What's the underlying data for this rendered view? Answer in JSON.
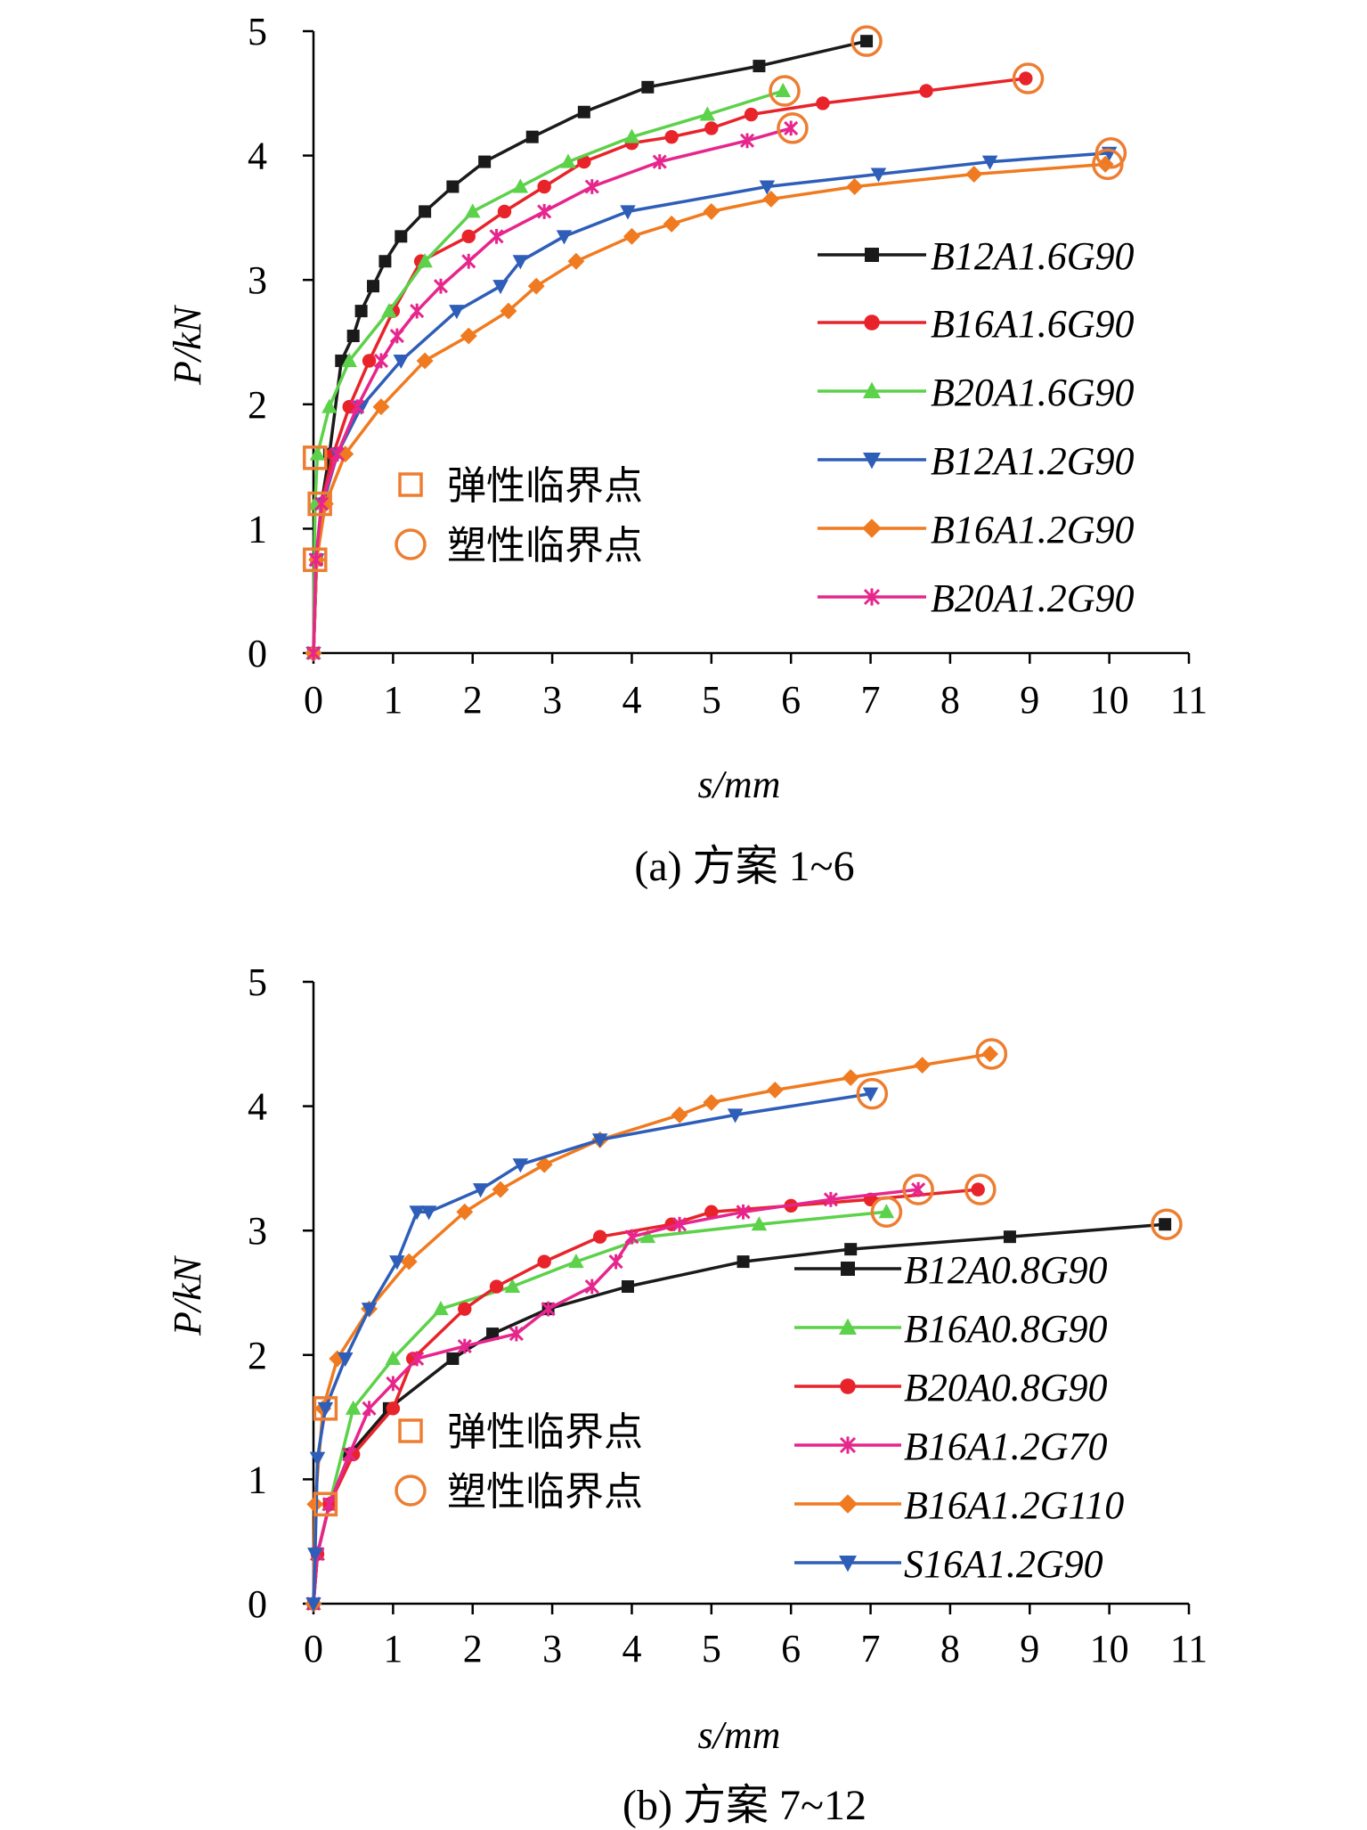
{
  "chart_data": [
    {
      "type": "line",
      "caption": "(a) 方案 1~6",
      "xlabel": "s/mm",
      "ylabel": "P/kN",
      "xlim": [
        0,
        11
      ],
      "ylim": [
        0,
        5
      ],
      "xticks": [
        "0",
        "1",
        "2",
        "3",
        "4",
        "5",
        "6",
        "7",
        "8",
        "9",
        "10",
        "11"
      ],
      "yticks": [
        "0",
        "1",
        "2",
        "3",
        "4",
        "5"
      ],
      "grid": false,
      "legend_position": "right",
      "markers_legend": [
        {
          "symbol": "square",
          "label": "弹性临界点",
          "color": "#ED7D31"
        },
        {
          "symbol": "circle",
          "label": "塑性临界点",
          "color": "#ED7D31"
        }
      ],
      "series": [
        {
          "name": "B12A1.6G90",
          "color": "#1a1a1a",
          "marker": "square",
          "x": [
            0,
            0.04,
            0.1,
            0.2,
            0.35,
            0.5,
            0.6,
            0.75,
            0.9,
            1.1,
            1.4,
            1.75,
            2.15,
            2.75,
            3.4,
            4.2,
            5.6,
            6.95
          ],
          "y": [
            0,
            0.75,
            1.2,
            1.6,
            2.35,
            2.55,
            2.75,
            2.95,
            3.15,
            3.35,
            3.55,
            3.75,
            3.95,
            4.15,
            4.35,
            4.55,
            4.72,
            4.92
          ]
        },
        {
          "name": "B16A1.6G90",
          "color": "#E8232A",
          "marker": "circle",
          "x": [
            0,
            0.04,
            0.1,
            0.25,
            0.45,
            0.7,
            1.0,
            1.35,
            1.95,
            2.4,
            2.9,
            3.4,
            4.0,
            4.5,
            5.0,
            5.5,
            6.4,
            7.7,
            8.95
          ],
          "y": [
            0,
            0.75,
            1.2,
            1.6,
            1.98,
            2.35,
            2.75,
            3.15,
            3.35,
            3.55,
            3.75,
            3.95,
            4.1,
            4.15,
            4.22,
            4.33,
            4.42,
            4.52,
            4.62
          ]
        },
        {
          "name": "B20A1.6G90",
          "color": "#5CD14A",
          "marker": "triangle-up",
          "x": [
            0,
            0.02,
            0.05,
            0.2,
            0.45,
            0.95,
            1.4,
            2.0,
            2.6,
            3.2,
            4.0,
            4.95,
            5.9
          ],
          "y": [
            0,
            1.2,
            1.6,
            1.98,
            2.35,
            2.75,
            3.15,
            3.55,
            3.75,
            3.95,
            4.15,
            4.33,
            4.52
          ]
        },
        {
          "name": "B12A1.2G90",
          "color": "#2E5EB8",
          "marker": "triangle-down",
          "x": [
            0,
            0.04,
            0.12,
            0.3,
            0.6,
            1.1,
            1.8,
            2.35,
            2.6,
            3.15,
            3.95,
            5.7,
            7.1,
            8.5,
            10.0
          ],
          "y": [
            0,
            0.75,
            1.2,
            1.6,
            1.98,
            2.35,
            2.75,
            2.95,
            3.15,
            3.35,
            3.55,
            3.75,
            3.85,
            3.95,
            4.02
          ]
        },
        {
          "name": "B16A1.2G90",
          "color": "#F07A1F",
          "marker": "diamond",
          "x": [
            0,
            0.04,
            0.15,
            0.4,
            0.85,
            1.4,
            1.95,
            2.45,
            2.8,
            3.3,
            4.0,
            4.5,
            5.0,
            5.75,
            6.8,
            8.3,
            9.95
          ],
          "y": [
            0,
            0.75,
            1.2,
            1.6,
            1.98,
            2.35,
            2.55,
            2.75,
            2.95,
            3.15,
            3.35,
            3.45,
            3.55,
            3.65,
            3.75,
            3.85,
            3.93
          ]
        },
        {
          "name": "B20A1.2G90",
          "color": "#E6268C",
          "marker": "asterisk",
          "x": [
            0,
            0.03,
            0.1,
            0.3,
            0.55,
            0.85,
            1.05,
            1.3,
            1.6,
            1.95,
            2.3,
            2.9,
            3.5,
            4.35,
            5.45,
            6.0
          ],
          "y": [
            0,
            0.75,
            1.2,
            1.6,
            1.98,
            2.35,
            2.55,
            2.75,
            2.95,
            3.15,
            3.35,
            3.55,
            3.75,
            3.95,
            4.12,
            4.22
          ]
        }
      ],
      "elastic_points": [
        [
          0.02,
          1.57
        ],
        [
          0.08,
          1.2
        ],
        [
          0.02,
          0.75
        ]
      ],
      "plastic_points": [
        [
          6.95,
          4.92
        ],
        [
          5.92,
          4.52
        ],
        [
          6.02,
          4.22
        ],
        [
          8.98,
          4.62
        ],
        [
          10.02,
          4.02
        ],
        [
          9.98,
          3.93
        ]
      ]
    },
    {
      "type": "line",
      "caption": "(b) 方案 7~12",
      "xlabel": "s/mm",
      "ylabel": "P/kN",
      "xlim": [
        0,
        11
      ],
      "ylim": [
        0,
        5
      ],
      "xticks": [
        "0",
        "1",
        "2",
        "3",
        "4",
        "5",
        "6",
        "7",
        "8",
        "9",
        "10",
        "11"
      ],
      "yticks": [
        "0",
        "1",
        "2",
        "3",
        "4",
        "5"
      ],
      "grid": false,
      "legend_position": "right",
      "markers_legend": [
        {
          "symbol": "square",
          "label": "弹性临界点",
          "color": "#ED7D31"
        },
        {
          "symbol": "circle",
          "label": "塑性临界点",
          "color": "#ED7D31"
        }
      ],
      "series": [
        {
          "name": "B12A0.8G90",
          "color": "#1a1a1a",
          "marker": "square",
          "x": [
            0,
            0.05,
            0.2,
            0.45,
            0.95,
            1.75,
            2.25,
            2.95,
            3.95,
            5.4,
            6.75,
            8.75,
            10.7
          ],
          "y": [
            0,
            0.4,
            0.8,
            1.2,
            1.57,
            1.97,
            2.17,
            2.37,
            2.55,
            2.75,
            2.85,
            2.95,
            3.05
          ]
        },
        {
          "name": "B16A0.8G90",
          "color": "#5CD14A",
          "marker": "triangle-up",
          "x": [
            0,
            0.05,
            0.2,
            0.5,
            1.0,
            1.6,
            2.5,
            3.3,
            4.2,
            5.6,
            7.2
          ],
          "y": [
            0,
            0.4,
            0.8,
            1.57,
            1.97,
            2.37,
            2.55,
            2.75,
            2.95,
            3.05,
            3.15
          ]
        },
        {
          "name": "B20A0.8G90",
          "color": "#E8232A",
          "marker": "circle",
          "x": [
            0,
            0.05,
            0.2,
            0.5,
            1.0,
            1.25,
            1.9,
            2.3,
            2.9,
            3.6,
            4.5,
            5.0,
            6.0,
            7.0,
            8.35
          ],
          "y": [
            0,
            0.4,
            0.8,
            1.2,
            1.57,
            1.97,
            2.37,
            2.55,
            2.75,
            2.95,
            3.05,
            3.15,
            3.2,
            3.25,
            3.33
          ]
        },
        {
          "name": "B16A1.2G70",
          "color": "#E6268C",
          "marker": "asterisk",
          "x": [
            0,
            0.05,
            0.2,
            0.45,
            0.7,
            1.0,
            1.3,
            1.9,
            2.55,
            2.95,
            3.5,
            3.8,
            4.0,
            4.6,
            5.4,
            6.5,
            7.6
          ],
          "y": [
            0,
            0.4,
            0.8,
            1.2,
            1.57,
            1.77,
            1.97,
            2.07,
            2.17,
            2.37,
            2.55,
            2.75,
            2.95,
            3.05,
            3.15,
            3.25,
            3.33
          ]
        },
        {
          "name": "B16A1.2G110",
          "color": "#F07A1F",
          "marker": "diamond",
          "x": [
            0,
            0.02,
            0.12,
            0.3,
            0.7,
            1.2,
            1.9,
            2.35,
            2.9,
            3.6,
            4.6,
            5.0,
            5.8,
            6.75,
            7.65,
            8.5
          ],
          "y": [
            0,
            0.8,
            1.57,
            1.97,
            2.37,
            2.75,
            3.15,
            3.33,
            3.53,
            3.73,
            3.93,
            4.03,
            4.13,
            4.23,
            4.33,
            4.42
          ]
        },
        {
          "name": "S16A1.2G90",
          "color": "#2E5EB8",
          "marker": "triangle-down",
          "x": [
            0,
            0.02,
            0.05,
            0.15,
            0.4,
            0.7,
            1.05,
            1.3,
            1.45,
            2.1,
            2.6,
            3.6,
            5.3,
            7.0
          ],
          "y": [
            0,
            0.4,
            1.17,
            1.57,
            1.97,
            2.37,
            2.75,
            3.15,
            3.15,
            3.33,
            3.53,
            3.73,
            3.93,
            4.1
          ]
        }
      ],
      "elastic_points": [
        [
          0.15,
          1.57
        ],
        [
          0.15,
          0.8
        ]
      ],
      "plastic_points": [
        [
          8.52,
          4.42
        ],
        [
          7.02,
          4.1
        ],
        [
          7.6,
          3.33
        ],
        [
          8.38,
          3.33
        ],
        [
          7.2,
          3.15
        ],
        [
          10.72,
          3.05
        ]
      ]
    }
  ]
}
